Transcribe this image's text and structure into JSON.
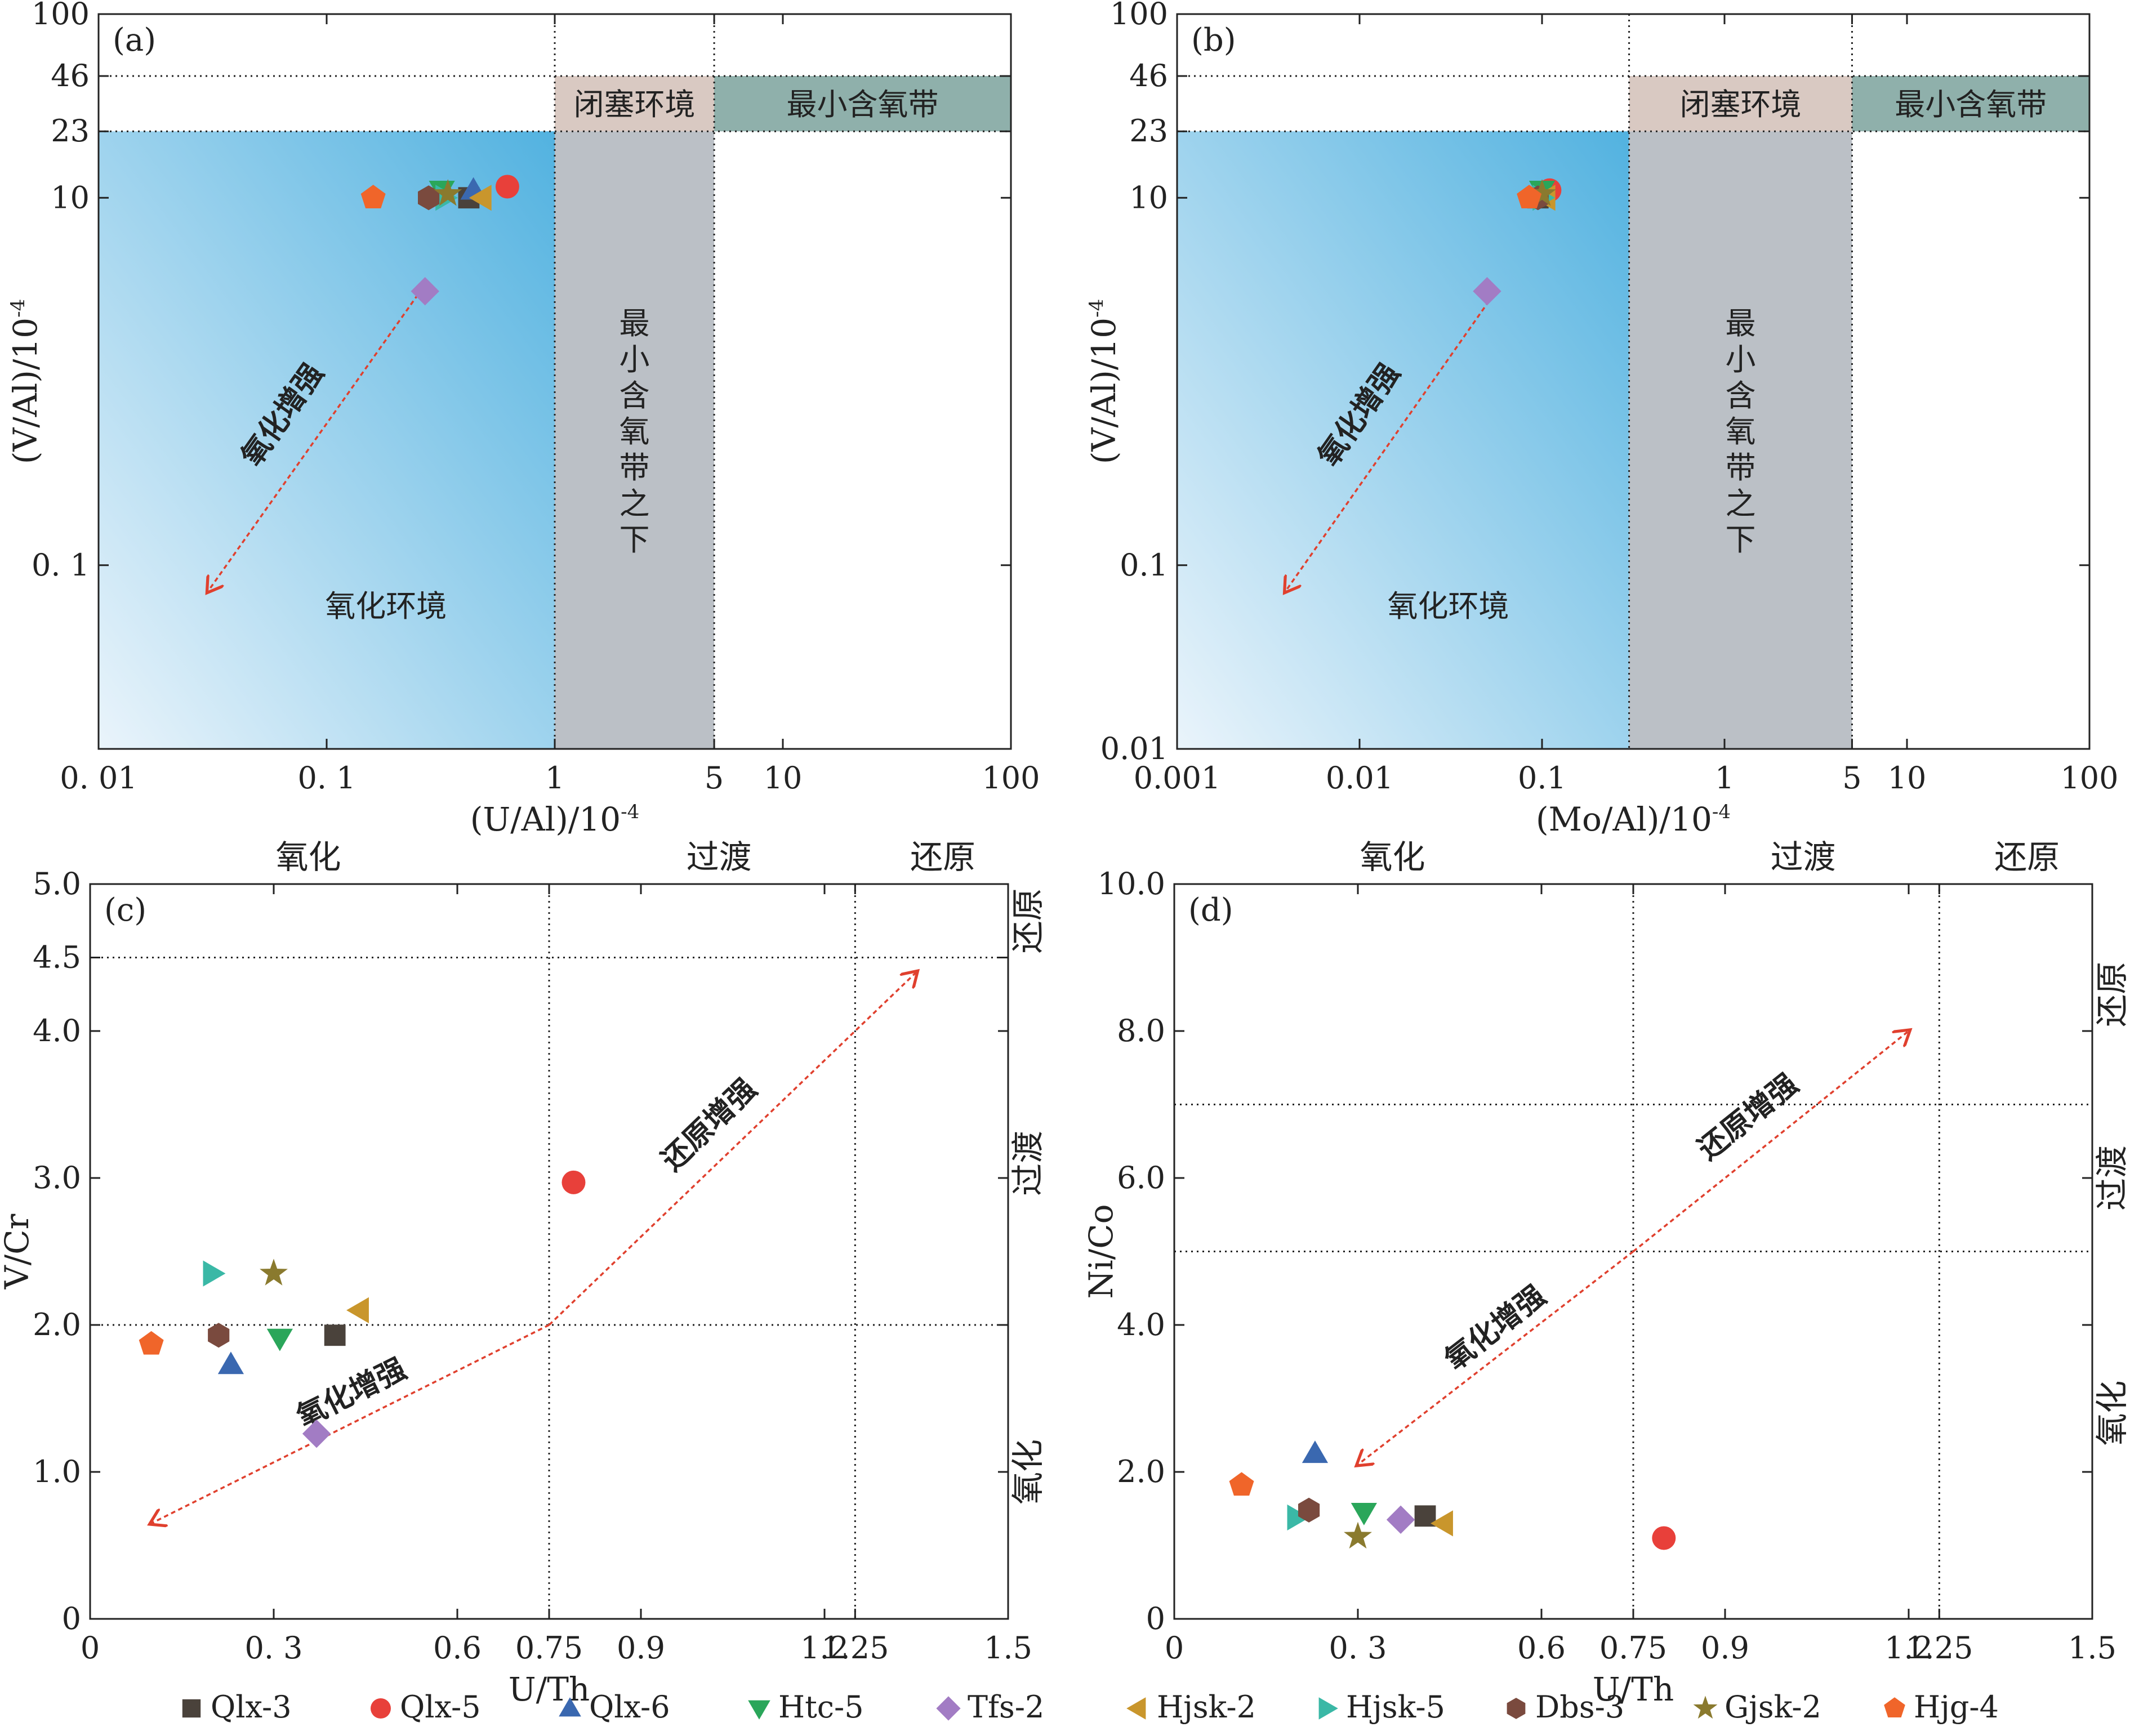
{
  "chart_data": [
    {
      "panel": "a",
      "type": "scatter",
      "title": "(a)",
      "xlabel": "(U/Al)/10",
      "xlabel_exp": "-4",
      "ylabel": "(V/Al)/10",
      "ylabel_exp": "-4",
      "xscale": "log",
      "yscale": "log",
      "xlim": [
        0.01,
        100
      ],
      "ylim": [
        0.01,
        100
      ],
      "xticks": [
        {
          "v": 0.01,
          "label": "0. 01"
        },
        {
          "v": 0.1,
          "label": "0. 1"
        },
        {
          "v": 1,
          "label": "1"
        },
        {
          "v": 5,
          "label": "5"
        },
        {
          "v": 10,
          "label": "10"
        },
        {
          "v": 100,
          "label": "100"
        }
      ],
      "yticks": [
        {
          "v": 100,
          "label": "100"
        },
        {
          "v": 46,
          "label": "46"
        },
        {
          "v": 23,
          "label": "23"
        },
        {
          "v": 10,
          "label": "10"
        },
        {
          "v": 0.1,
          "label": "0. 1"
        }
      ],
      "zones": {
        "oxic": "氧化环境",
        "restricted": "闭塞环境",
        "min_oxygen": "最小含氧带",
        "below_min_oxygen": "最小含氧带之下"
      },
      "arrow_label": "氧化增强",
      "points": [
        {
          "sample": "Qlx-3",
          "x": 0.42,
          "y": 10
        },
        {
          "sample": "Qlx-5",
          "x": 0.62,
          "y": 11.5
        },
        {
          "sample": "Qlx-6",
          "x": 0.44,
          "y": 11
        },
        {
          "sample": "Htc-5",
          "x": 0.32,
          "y": 11
        },
        {
          "sample": "Tfs-2",
          "x": 0.27,
          "y": 3.1
        },
        {
          "sample": "Hjsk-2",
          "x": 0.48,
          "y": 10
        },
        {
          "sample": "Hjsk-5",
          "x": 0.33,
          "y": 10
        },
        {
          "sample": "Dbs-3",
          "x": 0.28,
          "y": 10
        },
        {
          "sample": "Gjsk-2",
          "x": 0.34,
          "y": 10.5
        },
        {
          "sample": "Hjg-4",
          "x": 0.16,
          "y": 10
        }
      ]
    },
    {
      "panel": "b",
      "type": "scatter",
      "title": "(b)",
      "xlabel": "(Mo/Al)/10",
      "xlabel_exp": "-4",
      "ylabel": "(V/Al)/10",
      "ylabel_exp": "-4",
      "xscale": "log",
      "yscale": "log",
      "xlim": [
        0.001,
        100
      ],
      "ylim": [
        0.01,
        100
      ],
      "xticks": [
        {
          "v": 0.001,
          "label": "0.001"
        },
        {
          "v": 0.01,
          "label": "0.01"
        },
        {
          "v": 0.1,
          "label": "0.1"
        },
        {
          "v": 1,
          "label": "1"
        },
        {
          "v": 5,
          "label": "5"
        },
        {
          "v": 10,
          "label": "10"
        },
        {
          "v": 100,
          "label": "100"
        }
      ],
      "yticks": [
        {
          "v": 100,
          "label": "100"
        },
        {
          "v": 46,
          "label": "46"
        },
        {
          "v": 23,
          "label": "23"
        },
        {
          "v": 10,
          "label": "10"
        },
        {
          "v": 0.1,
          "label": "0.1"
        },
        {
          "v": 0.01,
          "label": "0.01"
        }
      ],
      "zones": {
        "oxic": "氧化环境",
        "restricted": "闭塞环境",
        "min_oxygen": "最小含氧带",
        "below_min_oxygen": "最小含氧带之下"
      },
      "arrow_label": "氧化增强",
      "points": [
        {
          "sample": "Qlx-3",
          "x": 0.095,
          "y": 10
        },
        {
          "sample": "Qlx-5",
          "x": 0.11,
          "y": 11
        },
        {
          "sample": "Qlx-6",
          "x": 0.1,
          "y": 10.5
        },
        {
          "sample": "Htc-5",
          "x": 0.1,
          "y": 11
        },
        {
          "sample": "Tfs-2",
          "x": 0.05,
          "y": 3.1
        },
        {
          "sample": "Hjsk-2",
          "x": 0.105,
          "y": 10
        },
        {
          "sample": "Hjsk-5",
          "x": 0.1,
          "y": 10
        },
        {
          "sample": "Dbs-3",
          "x": 0.095,
          "y": 10
        },
        {
          "sample": "Gjsk-2",
          "x": 0.1,
          "y": 10.5
        },
        {
          "sample": "Hjg-4",
          "x": 0.085,
          "y": 10
        }
      ]
    },
    {
      "panel": "c",
      "type": "scatter",
      "title": "(c)",
      "xlabel": "U/Th",
      "ylabel": "V/Cr",
      "xlim": [
        0,
        1.5
      ],
      "ylim": [
        0,
        5.0
      ],
      "xticks": [
        {
          "v": 0,
          "label": "0"
        },
        {
          "v": 0.3,
          "label": "0. 3"
        },
        {
          "v": 0.6,
          "label": "0.6"
        },
        {
          "v": 0.75,
          "label": "0.75"
        },
        {
          "v": 0.9,
          "label": "0.9"
        },
        {
          "v": 1.2,
          "label": "1.2"
        },
        {
          "v": 1.25,
          "label": "1.25"
        },
        {
          "v": 1.5,
          "label": "1.5"
        }
      ],
      "yticks": [
        {
          "v": 0,
          "label": "0"
        },
        {
          "v": 1.0,
          "label": "1.0"
        },
        {
          "v": 2.0,
          "label": "2.0"
        },
        {
          "v": 3.0,
          "label": "3.0"
        },
        {
          "v": 4.0,
          "label": "4.0"
        },
        {
          "v": 4.5,
          "label": "4.5"
        },
        {
          "v": 5.0,
          "label": "5.0"
        }
      ],
      "top_labels": [
        "氧化",
        "过渡",
        "还原"
      ],
      "right_labels": [
        "还原",
        "过渡",
        "氧化"
      ],
      "arrow_labels": {
        "reduction": "还原增强",
        "oxidation": "氧化增强"
      },
      "points": [
        {
          "sample": "Qlx-3",
          "x": 0.4,
          "y": 1.93
        },
        {
          "sample": "Qlx-5",
          "x": 0.79,
          "y": 2.97
        },
        {
          "sample": "Qlx-6",
          "x": 0.23,
          "y": 1.73
        },
        {
          "sample": "Htc-5",
          "x": 0.31,
          "y": 1.91
        },
        {
          "sample": "Tfs-2",
          "x": 0.37,
          "y": 1.26
        },
        {
          "sample": "Hjsk-2",
          "x": 0.44,
          "y": 2.1
        },
        {
          "sample": "Hjsk-5",
          "x": 0.2,
          "y": 2.35
        },
        {
          "sample": "Dbs-3",
          "x": 0.21,
          "y": 1.93
        },
        {
          "sample": "Gjsk-2",
          "x": 0.3,
          "y": 2.35
        },
        {
          "sample": "Hjg-4",
          "x": 0.1,
          "y": 1.87
        }
      ]
    },
    {
      "panel": "d",
      "type": "scatter",
      "title": "(d)",
      "xlabel": "U/Th",
      "ylabel": "Ni/Co",
      "xlim": [
        0,
        1.5
      ],
      "ylim": [
        0,
        10.0
      ],
      "xticks": [
        {
          "v": 0,
          "label": "0"
        },
        {
          "v": 0.3,
          "label": "0. 3"
        },
        {
          "v": 0.6,
          "label": "0.6"
        },
        {
          "v": 0.75,
          "label": "0.75"
        },
        {
          "v": 0.9,
          "label": "0.9"
        },
        {
          "v": 1.2,
          "label": "1.2"
        },
        {
          "v": 1.25,
          "label": "1.25"
        },
        {
          "v": 1.5,
          "label": "1.5"
        }
      ],
      "yticks": [
        {
          "v": 0,
          "label": "0"
        },
        {
          "v": 2.0,
          "label": "2.0"
        },
        {
          "v": 4.0,
          "label": "4.0"
        },
        {
          "v": 6.0,
          "label": "6.0"
        },
        {
          "v": 8.0,
          "label": "8.0"
        },
        {
          "v": 10.0,
          "label": "10.0"
        }
      ],
      "top_labels": [
        "氧化",
        "过渡",
        "还原"
      ],
      "right_labels": [
        "还原",
        "过渡",
        "氧化"
      ],
      "arrow_labels": {
        "reduction": "还原增强",
        "oxidation": "氧化增强"
      },
      "points": [
        {
          "sample": "Qlx-3",
          "x": 0.41,
          "y": 1.4
        },
        {
          "sample": "Qlx-5",
          "x": 0.8,
          "y": 1.1
        },
        {
          "sample": "Qlx-6",
          "x": 0.23,
          "y": 2.25
        },
        {
          "sample": "Htc-5",
          "x": 0.31,
          "y": 1.45
        },
        {
          "sample": "Tfs-2",
          "x": 0.37,
          "y": 1.35
        },
        {
          "sample": "Hjsk-2",
          "x": 0.44,
          "y": 1.3
        },
        {
          "sample": "Hjsk-5",
          "x": 0.2,
          "y": 1.38
        },
        {
          "sample": "Dbs-3",
          "x": 0.22,
          "y": 1.48
        },
        {
          "sample": "Gjsk-2",
          "x": 0.3,
          "y": 1.12
        },
        {
          "sample": "Hjg-4",
          "x": 0.11,
          "y": 1.82
        }
      ]
    }
  ],
  "legend": [
    {
      "name": "Qlx-3",
      "marker": "square",
      "color": "#4a423b"
    },
    {
      "name": "Qlx-5",
      "marker": "circle",
      "color": "#e8403a"
    },
    {
      "name": "Qlx-6",
      "marker": "triangle-up",
      "color": "#3a68b0"
    },
    {
      "name": "Htc-5",
      "marker": "triangle-down",
      "color": "#2aa65a"
    },
    {
      "name": "Tfs-2",
      "marker": "diamond",
      "color": "#a27cc4"
    },
    {
      "name": "Hjsk-2",
      "marker": "triangle-left",
      "color": "#c9962c"
    },
    {
      "name": "Hjsk-5",
      "marker": "triangle-right",
      "color": "#3ab8a6"
    },
    {
      "name": "Dbs-3",
      "marker": "hexagon",
      "color": "#7a4a3e"
    },
    {
      "name": "Gjsk-2",
      "marker": "star",
      "color": "#8a7a2e"
    },
    {
      "name": "Hjg-4",
      "marker": "pentagon",
      "color": "#f0652a"
    }
  ],
  "colors": {
    "oxic_gradient_light": "#eaf4fb",
    "oxic_gradient_dark": "#52b2e0",
    "restricted_zone": "#d9c9c2",
    "min_oxygen_zone": "#8fb0ab",
    "below_min_zone": "#bbc0c6",
    "arrow": "#e0402e"
  }
}
